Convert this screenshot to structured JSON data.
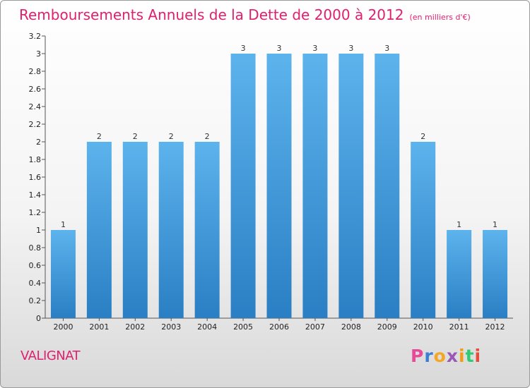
{
  "chart_data": {
    "type": "bar",
    "title": "Remboursements Annuels de la Dette de 2000 à 2012",
    "unit": "(en milliers d'€)",
    "categories": [
      "2000",
      "2001",
      "2002",
      "2003",
      "2004",
      "2005",
      "2006",
      "2007",
      "2008",
      "2009",
      "2010",
      "2011",
      "2012"
    ],
    "values": [
      1,
      2,
      2,
      2,
      2,
      3,
      3,
      3,
      3,
      3,
      2,
      1,
      1
    ],
    "data_labels": [
      "1",
      "2",
      "2",
      "2",
      "2",
      "3",
      "3",
      "3",
      "3",
      "3",
      "2",
      "1",
      "1"
    ],
    "ylim": [
      0,
      3.2
    ],
    "yticks": [
      0,
      0.2,
      0.4,
      0.6,
      0.8,
      1,
      1.2,
      1.4,
      1.6,
      1.8,
      2,
      2.2,
      2.4,
      2.6,
      2.8,
      3,
      3.2
    ],
    "ytick_labels": [
      "0",
      "0.2",
      "0.4",
      "0.6",
      "0.8",
      "1",
      "1.2",
      "1.4",
      "1.6",
      "1.8",
      "2",
      "2.2",
      "2.4",
      "2.6",
      "2.8",
      "3",
      "3.2"
    ],
    "grid": false,
    "bar_color": "#4ea6e4"
  },
  "commune": "VALIGNAT",
  "logo": {
    "letters": [
      "P",
      "r",
      "o",
      "x",
      "i",
      "t",
      "i"
    ],
    "colors": [
      "#e84a9a",
      "#3b7fd4",
      "#f5a623",
      "#9b59b6",
      "#f39c12",
      "#2ecc71",
      "#e74c3c"
    ]
  },
  "title_color": "#e0206e"
}
